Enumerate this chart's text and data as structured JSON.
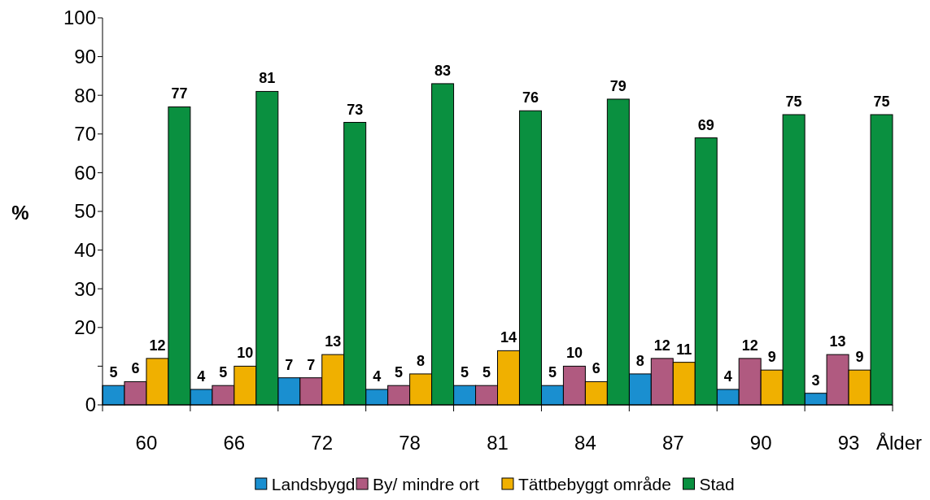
{
  "chart_data": {
    "type": "bar",
    "xlabel": "Ålder",
    "ylabel": "%",
    "categories": [
      "60",
      "66",
      "72",
      "78",
      "81",
      "84",
      "87",
      "90",
      "93"
    ],
    "series": [
      {
        "name": "Landsbygd",
        "color": "#1a8fd0",
        "values": [
          5,
          4,
          7,
          4,
          5,
          5,
          8,
          4,
          3
        ]
      },
      {
        "name": "By/ mindre ort",
        "color": "#b05a80",
        "values": [
          6,
          5,
          7,
          5,
          5,
          10,
          12,
          12,
          13
        ]
      },
      {
        "name": "Tättbebyggt område",
        "color": "#f0b000",
        "values": [
          12,
          10,
          13,
          8,
          14,
          6,
          11,
          9,
          9
        ]
      },
      {
        "name": "Stad",
        "color": "#0a9040",
        "values": [
          77,
          81,
          73,
          83,
          76,
          79,
          69,
          75,
          75
        ]
      }
    ],
    "ylim": [
      0,
      100
    ],
    "yticks": [
      0,
      {
        "value": 10,
        "label": null
      },
      20,
      30,
      40,
      50,
      60,
      70,
      80,
      90,
      100
    ],
    "data_labels": true,
    "legend": "bottom",
    "grid": false
  }
}
